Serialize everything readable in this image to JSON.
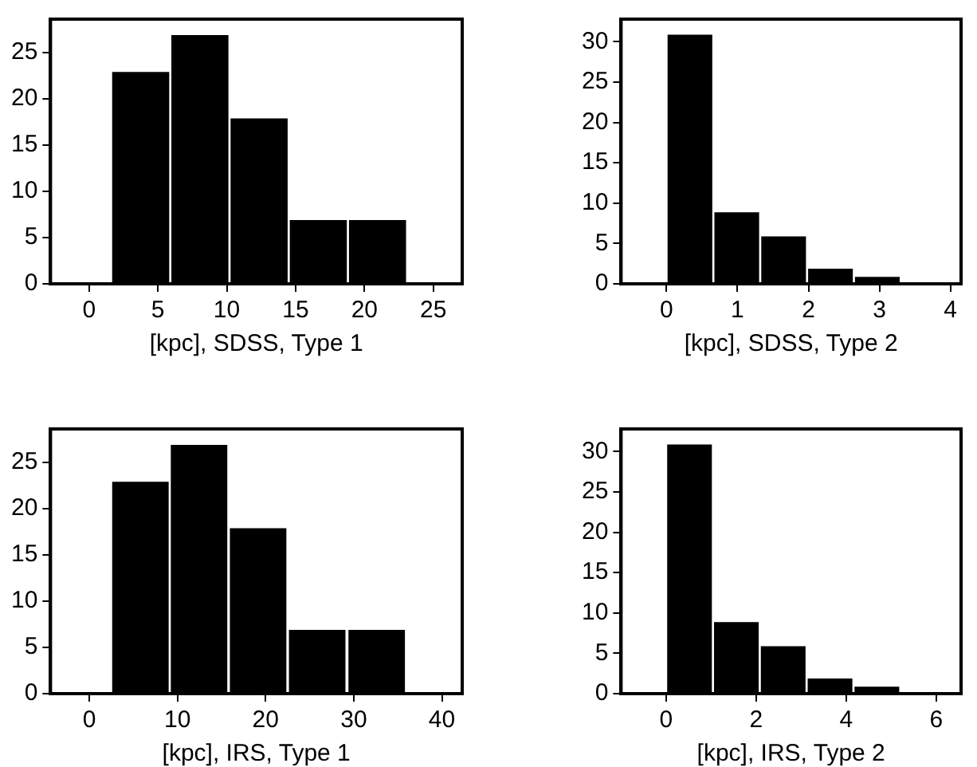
{
  "chart_data": [
    {
      "type": "histogram",
      "xlabel": "[kpc], SDSS, Type 1",
      "bins": [
        1.6,
        5.9,
        10.2,
        14.5,
        18.8,
        23.1
      ],
      "values": [
        23,
        27,
        18,
        7,
        7
      ],
      "color": "#000000",
      "xlim": [
        -2.8,
        27.1
      ],
      "ylim": [
        0,
        28.6
      ],
      "xticks": [
        0,
        5,
        10,
        15,
        20,
        25
      ],
      "yticks": [
        0,
        5,
        10,
        15,
        20,
        25
      ]
    },
    {
      "type": "histogram",
      "xlabel": "[kpc], SDSS, Type 2",
      "bins": [
        0,
        0.66,
        1.32,
        1.98,
        2.64,
        3.3
      ],
      "values": [
        31,
        9,
        6,
        2,
        1
      ],
      "color": "#000000",
      "xlim": [
        -0.64,
        4.15
      ],
      "ylim": [
        0,
        32.8
      ],
      "xticks": [
        0,
        1,
        2,
        3,
        4
      ],
      "yticks": [
        0,
        5,
        10,
        15,
        20,
        25,
        30
      ]
    },
    {
      "type": "histogram",
      "xlabel": "[kpc], IRS, Type 1",
      "bins": [
        2.5,
        9.1,
        15.8,
        22.5,
        29.2,
        36
      ],
      "values": [
        23,
        27,
        18,
        7,
        7
      ],
      "color": "#000000",
      "xlim": [
        -4.4,
        42.3
      ],
      "ylim": [
        0,
        28.6
      ],
      "xticks": [
        0,
        10,
        20,
        30,
        40
      ],
      "yticks": [
        0,
        5,
        10,
        15,
        20,
        25
      ]
    },
    {
      "type": "histogram",
      "xlabel": "[kpc], IRS, Type 2",
      "bins": [
        0,
        1.04,
        2.08,
        3.12,
        4.16,
        5.2
      ],
      "values": [
        31,
        9,
        6,
        2,
        1
      ],
      "color": "#000000",
      "xlim": [
        -1,
        6.55
      ],
      "ylim": [
        0,
        32.8
      ],
      "xticks": [
        0,
        2,
        4,
        6
      ],
      "yticks": [
        0,
        5,
        10,
        15,
        20,
        25,
        30
      ]
    }
  ]
}
